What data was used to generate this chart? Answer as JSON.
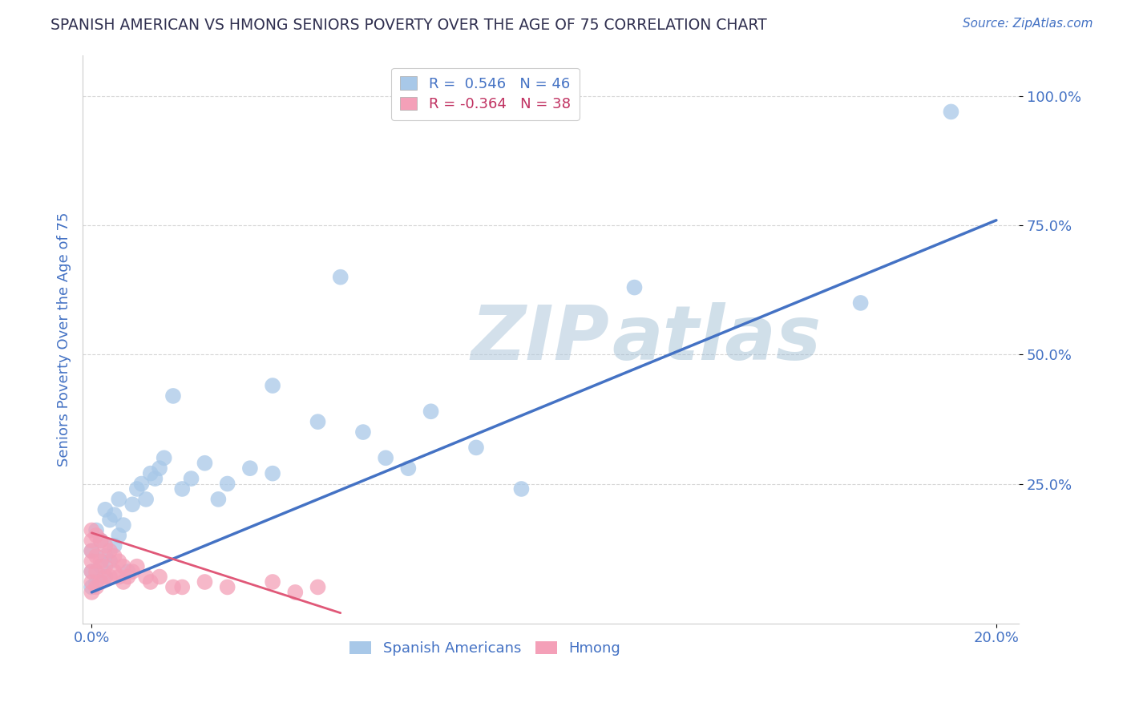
{
  "title": "SPANISH AMERICAN VS HMONG SENIORS POVERTY OVER THE AGE OF 75 CORRELATION CHART",
  "source": "Source: ZipAtlas.com",
  "ylabel": "Seniors Poverty Over the Age of 75",
  "watermark_zip": "ZIP",
  "watermark_atlas": "atlas",
  "legend_blue_r": "R =  0.546",
  "legend_blue_n": "N = 46",
  "legend_pink_r": "R = -0.364",
  "legend_pink_n": "N = 38",
  "blue_color": "#A8C8E8",
  "pink_color": "#F4A0B8",
  "blue_line_color": "#4472C4",
  "pink_line_color": "#E05878",
  "title_color": "#303050",
  "source_color": "#4472C4",
  "legend_r_blue": "#4472C4",
  "legend_r_pink": "#C03060",
  "axis_label_color": "#4472C4",
  "grid_color": "#CCCCCC",
  "background_color": "#FFFFFF",
  "xlim": [
    -0.002,
    0.205
  ],
  "ylim": [
    -0.02,
    1.08
  ],
  "ytick_vals": [
    0.25,
    0.5,
    0.75,
    1.0
  ],
  "ytick_labels": [
    "25.0%",
    "50.0%",
    "75.0%",
    "100.0%"
  ],
  "xtick_vals": [
    0.0,
    0.2
  ],
  "xtick_labels": [
    "0.0%",
    "20.0%"
  ],
  "blue_line_x": [
    0.0,
    0.2
  ],
  "blue_line_y": [
    0.04,
    0.76
  ],
  "pink_line_x": [
    0.0,
    0.055
  ],
  "pink_line_y": [
    0.155,
    0.0
  ],
  "blue_points_x": [
    0.0,
    0.0,
    0.0,
    0.001,
    0.001,
    0.002,
    0.002,
    0.003,
    0.003,
    0.003,
    0.004,
    0.004,
    0.005,
    0.005,
    0.006,
    0.006,
    0.007,
    0.008,
    0.009,
    0.01,
    0.011,
    0.012,
    0.013,
    0.014,
    0.015,
    0.016,
    0.018,
    0.02,
    0.022,
    0.025,
    0.028,
    0.03,
    0.035,
    0.04,
    0.04,
    0.05,
    0.055,
    0.06,
    0.065,
    0.07,
    0.075,
    0.085,
    0.095,
    0.12,
    0.17,
    0.19
  ],
  "blue_points_y": [
    0.05,
    0.08,
    0.12,
    0.06,
    0.16,
    0.09,
    0.14,
    0.07,
    0.11,
    0.2,
    0.1,
    0.18,
    0.13,
    0.19,
    0.15,
    0.22,
    0.17,
    0.08,
    0.21,
    0.24,
    0.25,
    0.22,
    0.27,
    0.26,
    0.28,
    0.3,
    0.42,
    0.24,
    0.26,
    0.29,
    0.22,
    0.25,
    0.28,
    0.27,
    0.44,
    0.37,
    0.65,
    0.35,
    0.3,
    0.28,
    0.39,
    0.32,
    0.24,
    0.63,
    0.6,
    0.97
  ],
  "pink_points_x": [
    0.0,
    0.0,
    0.0,
    0.0,
    0.0,
    0.0,
    0.0,
    0.001,
    0.001,
    0.001,
    0.001,
    0.002,
    0.002,
    0.002,
    0.003,
    0.003,
    0.003,
    0.004,
    0.004,
    0.005,
    0.005,
    0.006,
    0.006,
    0.007,
    0.007,
    0.008,
    0.009,
    0.01,
    0.012,
    0.013,
    0.015,
    0.018,
    0.02,
    0.025,
    0.03,
    0.04,
    0.045,
    0.05
  ],
  "pink_points_y": [
    0.04,
    0.06,
    0.08,
    0.1,
    0.12,
    0.14,
    0.16,
    0.05,
    0.08,
    0.11,
    0.15,
    0.06,
    0.1,
    0.14,
    0.07,
    0.09,
    0.13,
    0.07,
    0.12,
    0.08,
    0.11,
    0.07,
    0.1,
    0.06,
    0.09,
    0.07,
    0.08,
    0.09,
    0.07,
    0.06,
    0.07,
    0.05,
    0.05,
    0.06,
    0.05,
    0.06,
    0.04,
    0.05
  ]
}
